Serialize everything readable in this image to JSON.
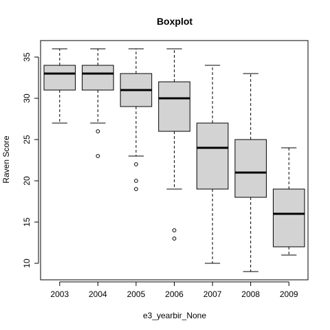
{
  "chart_data": {
    "type": "boxplot",
    "title": "Boxplot",
    "xlabel": "e3_yearbir_None",
    "ylabel": "Raven Score",
    "ylim": [
      8,
      37
    ],
    "yticks": [
      10,
      15,
      20,
      25,
      30,
      35
    ],
    "grid": false,
    "legend": "none",
    "colors": {
      "box_fill": "#d3d3d3",
      "stroke": "#000000"
    },
    "categories": [
      "2003",
      "2004",
      "2005",
      "2006",
      "2007",
      "2008",
      "2009"
    ],
    "boxes": [
      {
        "category": "2003",
        "whisker_low": 27,
        "q1": 31,
        "median": 33,
        "q3": 34,
        "whisker_high": 36,
        "outliers": []
      },
      {
        "category": "2004",
        "whisker_low": 27,
        "q1": 31,
        "median": 33,
        "q3": 34,
        "whisker_high": 36,
        "outliers": [
          26,
          23
        ]
      },
      {
        "category": "2005",
        "whisker_low": 23,
        "q1": 29,
        "median": 31,
        "q3": 33,
        "whisker_high": 36,
        "outliers": [
          22,
          20,
          19
        ]
      },
      {
        "category": "2006",
        "whisker_low": 19,
        "q1": 26,
        "median": 30,
        "q3": 32,
        "whisker_high": 36,
        "outliers": [
          14,
          13
        ]
      },
      {
        "category": "2007",
        "whisker_low": 10,
        "q1": 19,
        "median": 24,
        "q3": 27,
        "whisker_high": 34,
        "outliers": []
      },
      {
        "category": "2008",
        "whisker_low": 9,
        "q1": 18,
        "median": 21,
        "q3": 25,
        "whisker_high": 33,
        "outliers": []
      },
      {
        "category": "2009",
        "whisker_low": 11,
        "q1": 12,
        "median": 16,
        "q3": 19,
        "whisker_high": 24,
        "outliers": []
      }
    ]
  }
}
